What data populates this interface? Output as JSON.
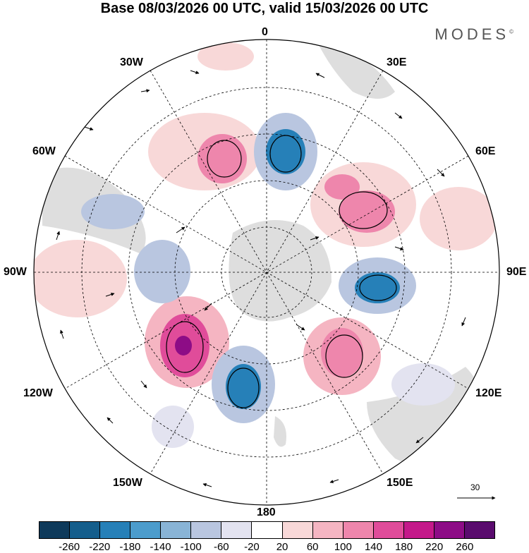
{
  "title": "Base 08/03/2026 00 UTC, valid 15/03/2026 00 UTC",
  "brand": "MODES",
  "brand_mark": "©",
  "longitude_labels": {
    "top": "0",
    "bottom": "180",
    "left": "90W",
    "right": "90E",
    "lon30w": "30W",
    "lon30e": "30E",
    "lon60w": "60W",
    "lon60e": "60E",
    "lon120w": "120W",
    "lon120e": "120E",
    "lon150w": "150W",
    "lon150e": "150E"
  },
  "reference_vector": "30",
  "colorbar": {
    "ticks": [
      "-260",
      "-220",
      "-180",
      "-140",
      "-100",
      "-60",
      "-20",
      "20",
      "60",
      "100",
      "140",
      "180",
      "220",
      "260"
    ],
    "colors": [
      "#0e3a5b",
      "#145e8c",
      "#2680b8",
      "#4c9ccc",
      "#89b4d6",
      "#b9c6e0",
      "#e3e3f0",
      "#ffffff",
      "#f8d8d8",
      "#f5b5c2",
      "#ee86ac",
      "#e04c9a",
      "#c4198a",
      "#8d0c86",
      "#5a0b6e"
    ]
  },
  "colors": {
    "land": "#dedede",
    "background": "#ffffff"
  }
}
